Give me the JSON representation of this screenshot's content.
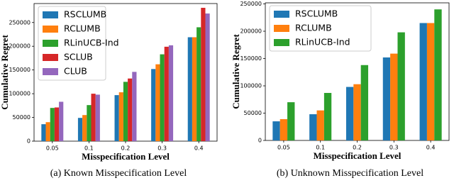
{
  "chart_data": [
    {
      "type": "bar",
      "xlabel": "Misspecification Level",
      "ylabel": "Cumulative Regret",
      "caption": "(a)  Known Misspecification Level",
      "categories": [
        "0.05",
        "0.1",
        "0.2",
        "0.3",
        "0.4"
      ],
      "series": [
        {
          "name": "RSCLUMB",
          "color": "#1f77b4",
          "values": [
            35700,
            49000,
            97000,
            152000,
            219000
          ]
        },
        {
          "name": "RCLUMB",
          "color": "#ff7f0e",
          "values": [
            40000,
            55000,
            103000,
            162000,
            219000
          ]
        },
        {
          "name": "RLinUCB-Ind",
          "color": "#2ca02c",
          "values": [
            70000,
            76000,
            125000,
            183000,
            240000
          ]
        },
        {
          "name": "SCLUB",
          "color": "#d62728",
          "values": [
            71000,
            100000,
            132000,
            199000,
            281000
          ]
        },
        {
          "name": "CLUB",
          "color": "#9467bd",
          "values": [
            83000,
            98000,
            146000,
            202000,
            269000
          ]
        }
      ],
      "ylim": [
        0,
        290000
      ],
      "yticks": [
        0,
        50000,
        100000,
        150000,
        200000,
        250000
      ],
      "legend": "upper left"
    },
    {
      "type": "bar",
      "xlabel": "Misspecification Level",
      "ylabel": "Cumulative Regret",
      "caption": "(b)  Unknown Misspecification Level",
      "categories": [
        "0.05",
        "0.1",
        "0.2",
        "0.3",
        "0.4"
      ],
      "series": [
        {
          "name": "RSCLUMB",
          "color": "#1f77b4",
          "values": [
            35000,
            48000,
            98000,
            152000,
            215000
          ]
        },
        {
          "name": "RCLUMB",
          "color": "#ff7f0e",
          "values": [
            39000,
            55000,
            103000,
            159000,
            215000
          ]
        },
        {
          "name": "RLinUCB-Ind",
          "color": "#2ca02c",
          "values": [
            70000,
            87000,
            138000,
            198000,
            240000
          ]
        }
      ],
      "ylim": [
        0,
        252000
      ],
      "yticks": [
        0,
        50000,
        100000,
        150000,
        200000,
        250000
      ],
      "legend": "upper left"
    }
  ]
}
